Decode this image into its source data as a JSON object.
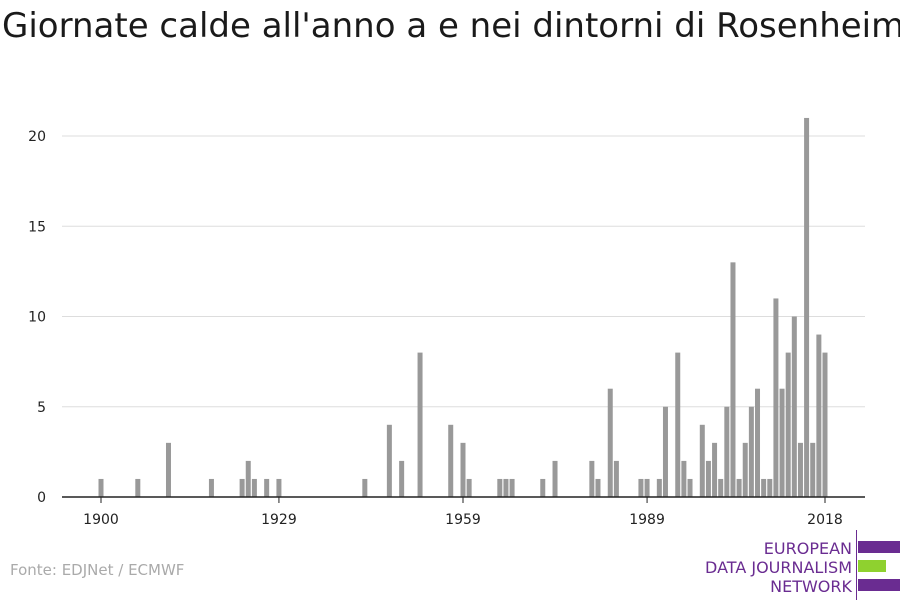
{
  "title": "Giornate calde all'anno a e nei dintorni di Rosenheim",
  "source": "Fonte: EDJNet / ECMWF",
  "logo": {
    "line1": "EUROPEAN",
    "line2": "DATA JOURNALISM",
    "line3": "NETWORK",
    "color_primary": "#6a2c91",
    "color_accent": "#8fd12f"
  },
  "colors": {
    "bar": "#999999",
    "grid": "#dddddd",
    "axis": "#222222",
    "text": "#222222"
  },
  "chart_data": {
    "type": "bar",
    "title": "Giornate calde all'anno a e nei dintorni di Rosenheim",
    "xlabel": "",
    "ylabel": "",
    "ylim": [
      0,
      22
    ],
    "yticks": [
      0,
      5,
      10,
      15,
      20
    ],
    "xticks": [
      1900,
      1929,
      1959,
      1989,
      2018
    ],
    "grid": true,
    "series": [
      {
        "x": [
          1900,
          1906,
          1911,
          1918,
          1923,
          1924,
          1925,
          1927,
          1929,
          1943,
          1947,
          1949,
          1952,
          1957,
          1959,
          1960,
          1965,
          1966,
          1967,
          1972,
          1974,
          1980,
          1981,
          1983,
          1984,
          1988,
          1989,
          1991,
          1992,
          1994,
          1995,
          1996,
          1998,
          1999,
          2000,
          2001,
          2002,
          2003,
          2004,
          2005,
          2006,
          2007,
          2008,
          2009,
          2010,
          2011,
          2012,
          2013,
          2014,
          2015,
          2016,
          2017,
          2018
        ],
        "values": [
          1,
          1,
          3,
          1,
          1,
          2,
          1,
          1,
          1,
          1,
          4,
          2,
          8,
          4,
          3,
          1,
          1,
          1,
          1,
          1,
          2,
          2,
          1,
          6,
          2,
          1,
          1,
          1,
          5,
          8,
          2,
          1,
          4,
          2,
          3,
          1,
          5,
          13,
          1,
          3,
          5,
          6,
          1,
          1,
          11,
          6,
          8,
          10,
          3,
          21,
          3,
          9,
          8
        ]
      }
    ]
  }
}
